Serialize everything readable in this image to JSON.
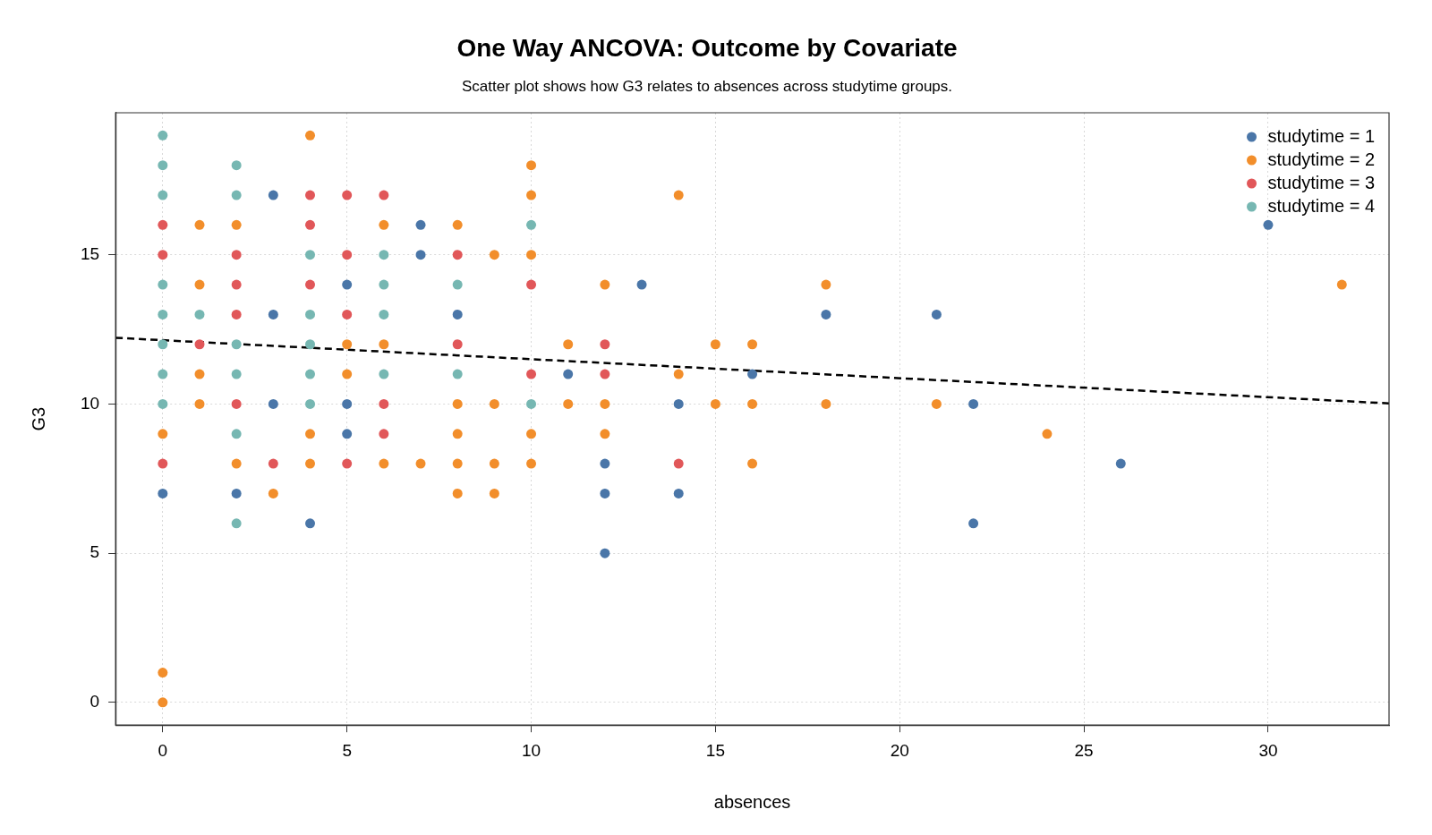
{
  "chart_data": {
    "type": "scatter",
    "title": "One Way ANCOVA: Outcome by Covariate",
    "subtitle": "Scatter plot shows how G3 relates to absences across studytime groups.",
    "xlabel": "absences",
    "ylabel": "G3",
    "xlim": [
      -1.28,
      33.28
    ],
    "ylim": [
      -0.76,
      19.76
    ],
    "xticks": [
      0,
      5,
      10,
      15,
      20,
      25,
      30
    ],
    "yticks": [
      0,
      5,
      10,
      15
    ],
    "grid": true,
    "legend": "top right",
    "marker": "circle",
    "series": [
      {
        "name": "studytime = 1",
        "color": "#4a76a8",
        "x": [
          0,
          2,
          3,
          3,
          3,
          4,
          5,
          5,
          5,
          7,
          7,
          8,
          11,
          12,
          12,
          12,
          13,
          14,
          14,
          16,
          18,
          21,
          22,
          22,
          26,
          30
        ],
        "values": [
          7,
          7,
          17,
          13,
          10,
          6,
          14,
          10,
          9,
          16,
          15,
          13,
          11,
          8,
          7,
          5,
          14,
          10,
          7,
          11,
          13,
          13,
          10,
          6,
          8,
          16
        ]
      },
      {
        "name": "studytime = 2",
        "color": "#f28e2b",
        "x": [
          0,
          0,
          0,
          1,
          1,
          1,
          1,
          2,
          2,
          3,
          4,
          4,
          4,
          5,
          5,
          6,
          6,
          6,
          7,
          8,
          8,
          8,
          8,
          8,
          9,
          9,
          9,
          9,
          10,
          10,
          10,
          10,
          10,
          11,
          11,
          12,
          12,
          12,
          14,
          14,
          15,
          15,
          16,
          16,
          16,
          18,
          18,
          21,
          24,
          32
        ],
        "values": [
          9,
          1,
          0,
          16,
          14,
          11,
          10,
          16,
          8,
          7,
          19,
          9,
          8,
          12,
          11,
          16,
          12,
          8,
          8,
          16,
          10,
          9,
          8,
          7,
          15,
          10,
          8,
          7,
          18,
          17,
          15,
          9,
          8,
          12,
          10,
          14,
          10,
          9,
          17,
          11,
          12,
          10,
          12,
          10,
          8,
          14,
          10,
          10,
          9,
          14
        ]
      },
      {
        "name": "studytime = 3",
        "color": "#e15759",
        "x": [
          0,
          0,
          0,
          1,
          2,
          2,
          2,
          2,
          3,
          4,
          4,
          4,
          5,
          5,
          5,
          5,
          6,
          6,
          6,
          8,
          8,
          10,
          10,
          12,
          12,
          14
        ],
        "values": [
          16,
          15,
          8,
          12,
          15,
          14,
          13,
          10,
          8,
          17,
          16,
          14,
          17,
          15,
          13,
          8,
          17,
          10,
          9,
          15,
          12,
          14,
          11,
          12,
          11,
          8
        ]
      },
      {
        "name": "studytime = 4",
        "color": "#76b7b2",
        "x": [
          0,
          0,
          0,
          0,
          0,
          0,
          0,
          0,
          1,
          2,
          2,
          2,
          2,
          2,
          2,
          4,
          4,
          4,
          4,
          4,
          6,
          6,
          6,
          6,
          8,
          8,
          10,
          10
        ],
        "values": [
          19,
          18,
          17,
          14,
          13,
          12,
          11,
          10,
          13,
          18,
          17,
          12,
          11,
          9,
          6,
          15,
          13,
          12,
          11,
          10,
          15,
          14,
          13,
          11,
          14,
          11,
          16,
          10
        ]
      },
      {
        "type": "line",
        "color": "#000000",
        "line_style": "dashed",
        "marker": "none",
        "x": [
          -1.28,
          33.28
        ],
        "values": [
          12.22,
          10.02
        ]
      }
    ]
  }
}
